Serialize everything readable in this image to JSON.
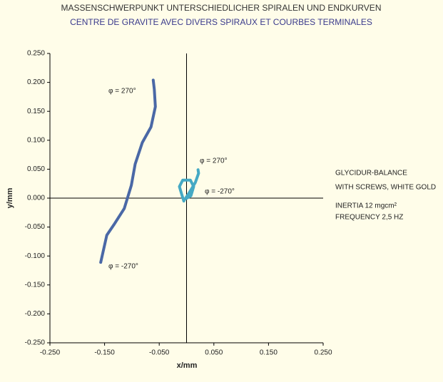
{
  "chart_data": {
    "type": "line",
    "title": "MASSENSCHWERPUNKT UNTERSCHIEDLICHER SPIRALEN UND ENDKURVEN",
    "subtitle": "CENTRE DE GRAVITE AVEC DIVERS SPIRAUX ET COURBES TERMINALES",
    "xlabel": "x/mm",
    "ylabel": "y/mm",
    "xlim": [
      -0.25,
      0.25
    ],
    "ylim": [
      -0.25,
      0.25
    ],
    "xticks": [
      {
        "value": -0.25,
        "label": "-0.250"
      },
      {
        "value": -0.15,
        "label": "-0.150"
      },
      {
        "value": -0.05,
        "label": "-0.050"
      },
      {
        "value": 0.05,
        "label": "0.050"
      },
      {
        "value": 0.15,
        "label": "0.150"
      },
      {
        "value": 0.25,
        "label": "0.250"
      }
    ],
    "yticks": [
      {
        "value": 0.25,
        "label": "0.250"
      },
      {
        "value": 0.2,
        "label": "0.200"
      },
      {
        "value": 0.15,
        "label": "0.150"
      },
      {
        "value": 0.1,
        "label": "0.100"
      },
      {
        "value": 0.05,
        "label": "0.050"
      },
      {
        "value": 0,
        "label": "0.000"
      },
      {
        "value": -0.05,
        "label": "-0.050"
      },
      {
        "value": -0.1,
        "label": "-0.100"
      },
      {
        "value": -0.15,
        "label": "-0.150"
      },
      {
        "value": -0.2,
        "label": "-0.200"
      },
      {
        "value": -0.25,
        "label": "-0.250"
      }
    ],
    "series": [
      {
        "color": "#4a68a6",
        "x": [
          -0.157,
          -0.146,
          -0.133,
          -0.114,
          -0.101,
          -0.094,
          -0.081,
          -0.065,
          -0.057,
          -0.059,
          -0.061
        ],
        "y": [
          -0.111,
          -0.064,
          -0.046,
          -0.018,
          0.022,
          0.059,
          0.096,
          0.123,
          0.158,
          0.188,
          0.204
        ]
      },
      {
        "color": "#45a9c4",
        "x": [
          -0.005,
          -0.009,
          -0.013,
          -0.007,
          0.007,
          0.013,
          0.008,
          -0.003,
          0.004,
          0.016,
          0.022,
          0.021
        ],
        "y": [
          -0.005,
          0.007,
          0.02,
          0.031,
          0.031,
          0.02,
          0.004,
          -0.002,
          0.008,
          0.027,
          0.043,
          0.049
        ]
      }
    ],
    "annotations": [
      "φ = 270°",
      "φ = -270°",
      "φ = 270°",
      "φ = -270°"
    ],
    "notes": [
      "GLYCIDUR-BALANCE",
      "WITH SCREWS, WHITE GOLD",
      "INERTIA 12 mgcm²",
      "FREQUENCY 2,5 HZ"
    ]
  }
}
